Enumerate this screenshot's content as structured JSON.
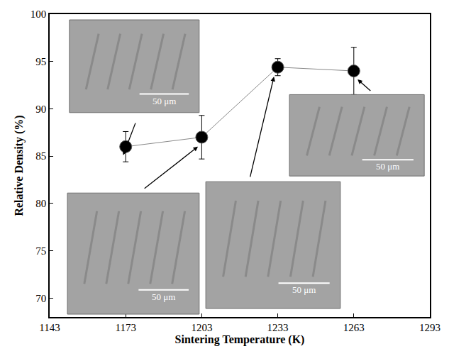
{
  "chart_data": {
    "type": "line",
    "xlabel": "Sintering Temperature (K)",
    "ylabel": "Relative Density (%)",
    "x": [
      1173,
      1203,
      1233,
      1263
    ],
    "values": [
      86,
      87,
      94.4,
      94
    ],
    "errors": [
      1.6,
      2.3,
      0.9,
      2.5
    ],
    "color": "#000000",
    "marker": "circle",
    "xlim": [
      1143,
      1293
    ],
    "xticks": [
      1143,
      1173,
      1203,
      1233,
      1263,
      1293
    ],
    "ylim": [
      68,
      100
    ],
    "yticks": [
      70,
      75,
      80,
      85,
      90,
      95,
      100
    ],
    "grid": false,
    "annotations": [
      "50 μm",
      "50 μm",
      "50 μm",
      "50 μm"
    ]
  }
}
